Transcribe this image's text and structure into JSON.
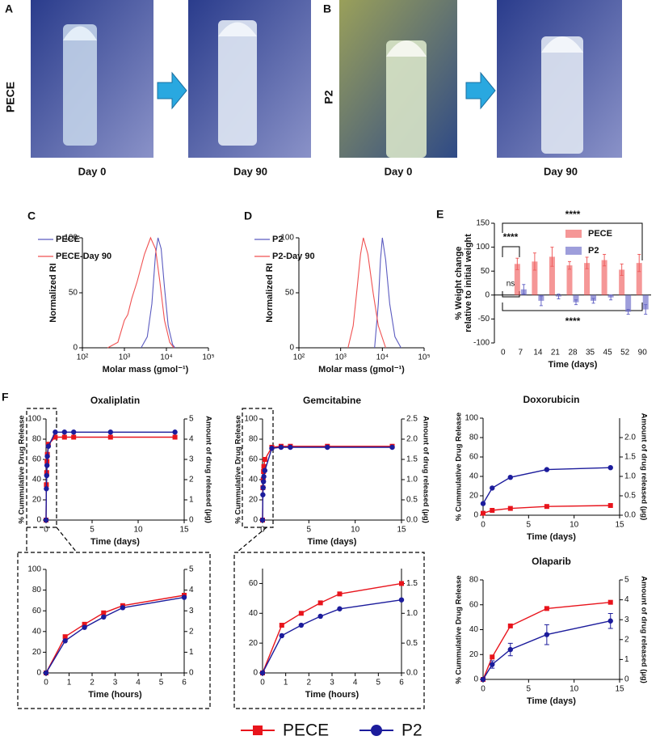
{
  "photo_panels": [
    {
      "label": "A",
      "sample": "PECE",
      "captions": [
        "Day 0",
        "Day 90"
      ]
    },
    {
      "label": "B",
      "sample": "P2",
      "captions": [
        "Day 0",
        "Day 90"
      ]
    }
  ],
  "chart_data": [
    {
      "type": "line",
      "panel_label": "C",
      "x_label": "Molar mass (gmol⁻¹)",
      "y_label": "Normalized RI",
      "xscale": "log",
      "xlim": [
        100,
        100000
      ],
      "xticks": [
        {
          "value": 100,
          "label": "10²"
        },
        {
          "value": 1000,
          "label": "10³"
        },
        {
          "value": 10000,
          "label": "10⁴"
        },
        {
          "value": 100000,
          "label": "10⁵"
        }
      ],
      "ylim": [
        0,
        100
      ],
      "yticks": [
        0,
        50,
        100
      ],
      "legend": "upper left",
      "series": [
        {
          "name": "PECE",
          "color": "#5b5bc0",
          "x": [
            2500,
            3500,
            4500,
            5500,
            6300,
            7500,
            9000,
            11000,
            14000,
            16000
          ],
          "values": [
            0,
            10,
            40,
            85,
            100,
            90,
            55,
            20,
            3,
            0
          ]
        },
        {
          "name": "PECE-Day 90",
          "color": "#f05252",
          "x": [
            400,
            700,
            1000,
            1200,
            1500,
            2000,
            3000,
            4200,
            5500,
            7000,
            9000,
            12000,
            15000
          ],
          "values": [
            0,
            5,
            25,
            30,
            45,
            60,
            85,
            100,
            90,
            60,
            25,
            5,
            0
          ]
        }
      ]
    },
    {
      "type": "line",
      "panel_label": "D",
      "x_label": "Molar mass (gmol⁻¹)",
      "y_label": "Normalized RI",
      "xscale": "log",
      "xlim": [
        100,
        100000
      ],
      "xticks": [
        {
          "value": 100,
          "label": "10²"
        },
        {
          "value": 1000,
          "label": "10³"
        },
        {
          "value": 10000,
          "label": "10⁴"
        },
        {
          "value": 100000,
          "label": "10⁵"
        }
      ],
      "ylim": [
        0,
        100
      ],
      "yticks": [
        0,
        50,
        100
      ],
      "legend": "upper left",
      "series": [
        {
          "name": "P2",
          "color": "#5b5bc0",
          "x": [
            6500,
            8000,
            9000,
            10000,
            12000,
            15000,
            20000,
            28000
          ],
          "values": [
            0,
            40,
            80,
            100,
            80,
            40,
            10,
            0
          ]
        },
        {
          "name": "P2-Day 90",
          "color": "#f05252",
          "x": [
            1500,
            2000,
            2500,
            3000,
            3500,
            4500,
            6000,
            8000,
            12000
          ],
          "values": [
            0,
            20,
            55,
            85,
            100,
            85,
            50,
            20,
            0
          ]
        }
      ]
    },
    {
      "type": "bar",
      "panel_label": "E",
      "x_label": "Time (days)",
      "y_label": [
        "% Weight change",
        "relative to initial weight"
      ],
      "categories": [
        "0",
        "7",
        "14",
        "21",
        "28",
        "35",
        "45",
        "52",
        "90"
      ],
      "ylim": [
        -100,
        150
      ],
      "yticks": [
        -100,
        -50,
        0,
        50,
        100,
        150
      ],
      "legend": "upper right",
      "annotations": [
        "****",
        "****",
        "ns",
        "****"
      ],
      "series": [
        {
          "name": "PECE",
          "color": "#f06060",
          "values": [
            null,
            65,
            70,
            80,
            62,
            67,
            73,
            53,
            67
          ],
          "errors": [
            null,
            12,
            18,
            20,
            8,
            12,
            12,
            12,
            18
          ]
        },
        {
          "name": "P2",
          "color": "#6a6ac8",
          "values": [
            null,
            12,
            -12,
            -3,
            -15,
            -12,
            -5,
            -35,
            -30
          ],
          "errors": [
            null,
            10,
            10,
            5,
            5,
            5,
            5,
            5,
            10
          ]
        }
      ]
    },
    {
      "type": "line",
      "panel_label": "F",
      "title": "Oxaliplatin",
      "x_label": "Time (days)",
      "y_label": "% Cummulative Drug Release",
      "y2_label": "Amount of drug released (µg)",
      "x": [
        0,
        0.035,
        0.07,
        0.104,
        0.139,
        0.25,
        1,
        2,
        3,
        7,
        14
      ],
      "xlim": [
        0,
        15
      ],
      "xticks": [
        0,
        5,
        10,
        15
      ],
      "ylim": [
        0,
        100
      ],
      "yticks": [
        0,
        20,
        40,
        60,
        80,
        100
      ],
      "y2lim": [
        0,
        5
      ],
      "y2ticks": [
        0,
        1,
        2,
        3,
        4,
        5
      ],
      "series": [
        {
          "name": "PECE",
          "color": "#e8141c",
          "marker": "square",
          "values": [
            0,
            35,
            47,
            58,
            65,
            75,
            82,
            82,
            82,
            82,
            82
          ]
        },
        {
          "name": "P2",
          "color": "#1c1c9c",
          "marker": "circle",
          "values": [
            0,
            31,
            44,
            54,
            63,
            73,
            87,
            87,
            87,
            87,
            87
          ]
        }
      ]
    },
    {
      "type": "line",
      "x_label": "Time (hours)",
      "x": [
        0,
        0.83,
        1.67,
        2.5,
        3.33,
        6
      ],
      "xlim": [
        0,
        6
      ],
      "xticks": [
        0,
        1,
        2,
        3,
        4,
        5,
        6
      ],
      "ylim": [
        0,
        100
      ],
      "yticks": [
        0,
        20,
        40,
        60,
        80,
        100
      ],
      "y2lim": [
        0,
        5
      ],
      "y2ticks": [
        0,
        1,
        2,
        3,
        4,
        5
      ],
      "series": [
        {
          "color": "#e8141c",
          "marker": "square",
          "values": [
            0,
            35,
            47,
            58,
            65,
            75
          ]
        },
        {
          "color": "#1c1c9c",
          "marker": "circle",
          "values": [
            0,
            31,
            44,
            54,
            63,
            73
          ]
        }
      ]
    },
    {
      "type": "line",
      "title": "Gemcitabine",
      "x_label": "Time (days)",
      "y_label": "% Cummulative Drug Release",
      "y2_label": "Amount of drug released (µg)",
      "x": [
        0,
        0.035,
        0.07,
        0.104,
        0.139,
        0.25,
        1,
        2,
        3,
        7,
        14
      ],
      "xlim": [
        0,
        15
      ],
      "xticks": [
        0,
        5,
        10,
        15
      ],
      "ylim": [
        0,
        100
      ],
      "yticks": [
        0,
        20,
        40,
        60,
        80,
        100
      ],
      "y2lim": [
        0,
        2.5
      ],
      "y2ticks": [
        {
          "value": 0,
          "label": "0.0"
        },
        0.5,
        {
          "value": 1,
          "label": "1.0"
        },
        1.5,
        {
          "value": 2,
          "label": "2.0"
        },
        2.5
      ],
      "series": [
        {
          "color": "#e8141c",
          "marker": "square",
          "values": [
            0,
            32,
            40,
            48,
            53,
            60,
            72,
            73,
            73,
            73,
            73
          ]
        },
        {
          "color": "#1c1c9c",
          "marker": "circle",
          "values": [
            0,
            25,
            32,
            38,
            43,
            49,
            71,
            72,
            72,
            72,
            72
          ]
        }
      ]
    },
    {
      "type": "line",
      "x_label": "Time (hours)",
      "x": [
        0,
        0.83,
        1.67,
        2.5,
        3.33,
        6
      ],
      "xlim": [
        0,
        6
      ],
      "xticks": [
        0,
        1,
        2,
        3,
        4,
        5,
        6
      ],
      "ylim": [
        0,
        70
      ],
      "yticks": [
        0,
        20,
        40,
        60
      ],
      "y2lim": [
        0,
        1.75
      ],
      "y2ticks": [
        {
          "value": 0,
          "label": "0.0"
        },
        0.5,
        {
          "value": 1,
          "label": "1.0"
        },
        1.5
      ],
      "series": [
        {
          "color": "#e8141c",
          "marker": "square",
          "values": [
            0,
            32,
            40,
            47,
            53,
            60
          ]
        },
        {
          "color": "#1c1c9c",
          "marker": "circle",
          "values": [
            0,
            25,
            32,
            38,
            43,
            49
          ]
        }
      ]
    },
    {
      "type": "line",
      "title": "Doxorubicin",
      "x_label": "Time (days)",
      "y_label": "% Cummulative Drug Release",
      "y2_label": "Amount of drug released (µg)",
      "x": [
        0,
        1,
        3,
        7,
        14
      ],
      "xlim": [
        0,
        15
      ],
      "xticks": [
        0,
        5,
        10,
        15
      ],
      "ylim": [
        0,
        100
      ],
      "yticks": [
        0,
        20,
        40,
        60,
        80,
        100
      ],
      "y2lim": [
        0,
        2.5
      ],
      "y2ticks": [
        {
          "value": 0,
          "label": "0.0"
        },
        0.5,
        {
          "value": 1,
          "label": "1.0"
        },
        1.5,
        {
          "value": 2,
          "label": "2.0"
        }
      ],
      "series": [
        {
          "color": "#e8141c",
          "marker": "square",
          "values": [
            2,
            5,
            7,
            9,
            10
          ]
        },
        {
          "color": "#1c1c9c",
          "marker": "circle",
          "values": [
            12,
            28,
            39,
            47,
            49
          ]
        }
      ]
    },
    {
      "type": "line",
      "title": "Olaparib",
      "x_label": "Time (days)",
      "y_label": "% Cummulative Drug Release",
      "y2_label": "Amount of drug released (µg)",
      "x": [
        0,
        1,
        3,
        7,
        14
      ],
      "xlim": [
        0,
        15
      ],
      "xticks": [
        0,
        5,
        10,
        15
      ],
      "ylim": [
        0,
        80
      ],
      "yticks": [
        0,
        20,
        40,
        60,
        80
      ],
      "y2lim": [
        0,
        5
      ],
      "y2ticks": [
        0,
        1,
        2,
        3,
        4,
        5
      ],
      "series": [
        {
          "color": "#e8141c",
          "marker": "square",
          "values": [
            0,
            18,
            43,
            57,
            62
          ]
        },
        {
          "color": "#1c1c9c",
          "marker": "circle",
          "values": [
            0,
            12,
            24,
            36,
            47
          ],
          "errors": [
            0,
            3,
            5,
            8,
            6
          ]
        }
      ]
    }
  ]
}
